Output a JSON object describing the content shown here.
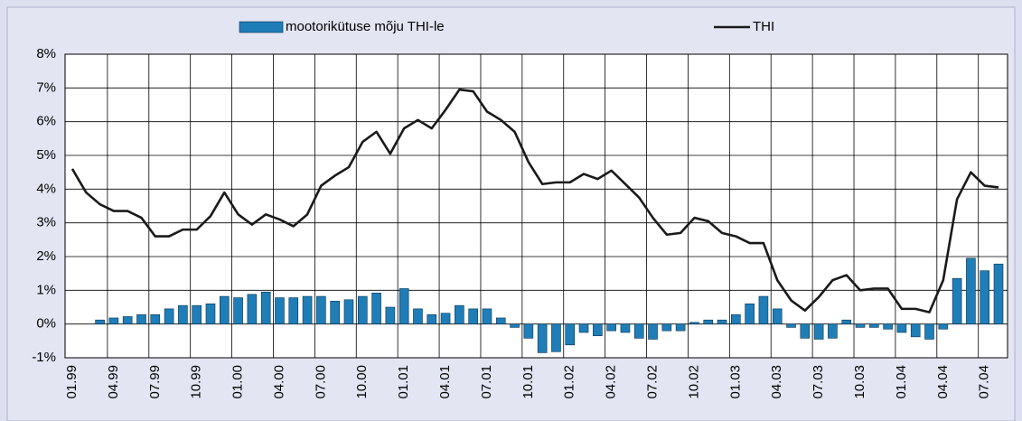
{
  "chart_data": {
    "type": "bar-line",
    "categories": [
      "01.99",
      null,
      null,
      "04.99",
      null,
      null,
      "07.99",
      null,
      null,
      "10.99",
      null,
      null,
      "01.00",
      null,
      null,
      "04.00",
      null,
      null,
      "07.00",
      null,
      null,
      "10.00",
      null,
      null,
      "01.01",
      null,
      null,
      "04.01",
      null,
      null,
      "07.01",
      null,
      null,
      "10.01",
      null,
      null,
      "01.02",
      null,
      null,
      "04.02",
      null,
      null,
      "07.02",
      null,
      null,
      "10.02",
      null,
      null,
      "01.03",
      null,
      null,
      "04.03",
      null,
      null,
      "07.03",
      null,
      null,
      "10.03",
      null,
      null,
      "01.04",
      null,
      null,
      "04.04",
      null,
      null,
      "07.04",
      null
    ],
    "series": [
      {
        "name": "mootorikütuse mõju THI-le",
        "type": "bar",
        "color": "#1f7db8",
        "values": [
          null,
          null,
          0.12,
          0.18,
          0.22,
          0.28,
          0.28,
          0.45,
          0.55,
          0.55,
          0.6,
          0.82,
          0.78,
          0.88,
          0.95,
          0.78,
          0.78,
          0.82,
          0.82,
          0.68,
          0.72,
          0.82,
          0.92,
          0.5,
          1.05,
          0.45,
          0.28,
          0.32,
          0.55,
          0.45,
          0.45,
          0.18,
          -0.1,
          -0.42,
          -0.85,
          -0.82,
          -0.62,
          -0.25,
          -0.35,
          -0.2,
          -0.25,
          -0.42,
          -0.45,
          -0.2,
          -0.2,
          0.05,
          0.12,
          0.12,
          0.28,
          0.6,
          0.82,
          0.45,
          -0.1,
          -0.42,
          -0.45,
          -0.42,
          0.12,
          -0.1,
          -0.1,
          -0.15,
          -0.25,
          -0.38,
          -0.45,
          -0.15,
          1.35,
          1.95,
          1.58,
          1.78
        ]
      },
      {
        "name": "THI",
        "type": "line",
        "color": "#1a1a1a",
        "values": [
          4.6,
          3.9,
          3.55,
          3.35,
          3.35,
          3.15,
          2.6,
          2.6,
          2.8,
          2.8,
          3.2,
          3.9,
          3.25,
          2.95,
          3.25,
          3.1,
          2.9,
          3.25,
          4.1,
          4.4,
          4.65,
          5.4,
          5.7,
          5.05,
          5.8,
          6.05,
          5.8,
          6.35,
          6.95,
          6.9,
          6.3,
          6.05,
          5.7,
          4.8,
          4.15,
          4.2,
          4.2,
          4.45,
          4.3,
          4.55,
          4.15,
          3.75,
          3.15,
          2.65,
          2.7,
          3.15,
          3.05,
          2.7,
          2.6,
          2.4,
          2.4,
          1.3,
          0.7,
          0.4,
          0.8,
          1.3,
          1.45,
          1.0,
          1.05,
          1.05,
          0.45,
          0.45,
          0.35,
          1.3,
          3.7,
          4.5,
          4.1,
          4.05
        ]
      }
    ],
    "ylim": [
      -1,
      8
    ],
    "yticks": [
      {
        "value": -1,
        "label": "-1%"
      },
      {
        "value": 0,
        "label": "0%"
      },
      {
        "value": 1,
        "label": "1%"
      },
      {
        "value": 2,
        "label": "2%"
      },
      {
        "value": 3,
        "label": "3%"
      },
      {
        "value": 4,
        "label": "4%"
      },
      {
        "value": 5,
        "label": "5%"
      },
      {
        "value": 6,
        "label": "6%"
      },
      {
        "value": 7,
        "label": "7%"
      },
      {
        "value": 8,
        "label": "8%"
      }
    ],
    "grid": true
  }
}
